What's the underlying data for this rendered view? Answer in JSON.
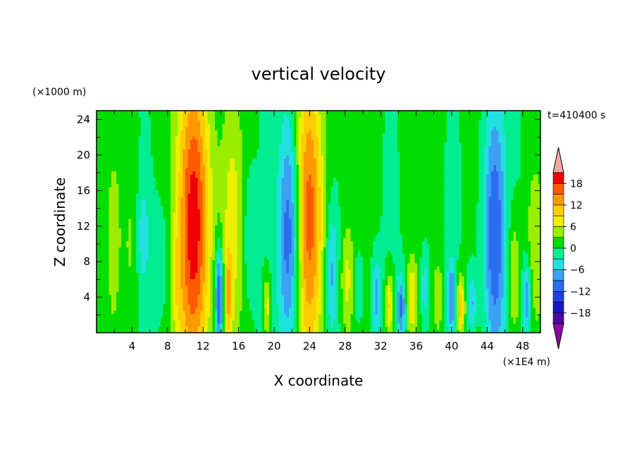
{
  "chart_data": {
    "type": "heatmap",
    "title": "vertical velocity",
    "xlabel": "X coordinate",
    "ylabel": "Z coordinate",
    "x_unit": "(×1E4 m)",
    "y_unit": "(×1000 m)",
    "time_label": "t=410400 s",
    "xlim": [
      0,
      50
    ],
    "ylim": [
      0,
      25
    ],
    "x_ticks": [
      4,
      8,
      12,
      16,
      20,
      24,
      28,
      32,
      36,
      40,
      44,
      48
    ],
    "y_ticks": [
      4,
      8,
      12,
      16,
      20,
      24
    ],
    "colorbar": {
      "levels": [
        -21,
        -18,
        -15,
        -12,
        -9,
        -6,
        -3,
        0,
        3,
        6,
        9,
        12,
        15,
        18,
        21
      ],
      "labels": [
        18,
        12,
        6,
        0,
        -6,
        -12,
        -18
      ],
      "colors": [
        "#8a0aa5",
        "#4a0aa5",
        "#1616c8",
        "#1d3ee0",
        "#2a6ef0",
        "#3ca0f5",
        "#22e0e0",
        "#00ee90",
        "#00dd00",
        "#99ee00",
        "#eeee00",
        "#ffcc00",
        "#ff9900",
        "#ff5a00",
        "#f00000",
        "#f8a8a8"
      ]
    },
    "features": [
      {
        "x": 2.0,
        "z": 12,
        "sx": 0.8,
        "sz": 9,
        "v": 2
      },
      {
        "x": 4.0,
        "z": 10,
        "sx": 0.6,
        "sz": 7,
        "v": 3
      },
      {
        "x": 5.2,
        "z": 11,
        "sx": 0.5,
        "sz": 4,
        "v": -5
      },
      {
        "x": 7.5,
        "z": 8,
        "sx": 0.8,
        "sz": 5,
        "v": -3
      },
      {
        "x": 9.0,
        "z": 6,
        "sx": 0.4,
        "sz": 4,
        "v": 3
      },
      {
        "x": 11.0,
        "z": 12,
        "sx": 1.3,
        "sz": 13,
        "v": 20
      },
      {
        "x": 13.8,
        "z": 4,
        "sx": 0.35,
        "sz": 4,
        "v": -15
      },
      {
        "x": 14.8,
        "z": 4,
        "sx": 0.35,
        "sz": 3.5,
        "v": 9
      },
      {
        "x": 15.3,
        "z": 13,
        "sx": 0.9,
        "sz": 9,
        "v": 6
      },
      {
        "x": 17.0,
        "z": 11,
        "sx": 0.6,
        "sz": 6,
        "v": -3
      },
      {
        "x": 19.2,
        "z": 3,
        "sx": 0.3,
        "sz": 2.5,
        "v": 8
      },
      {
        "x": 21.8,
        "z": 11,
        "sx": 0.9,
        "sz": 10,
        "v": -14
      },
      {
        "x": 23.9,
        "z": 13,
        "sx": 1.2,
        "sz": 12,
        "v": 16
      },
      {
        "x": 26.5,
        "z": 7,
        "sx": 0.5,
        "sz": 5,
        "v": -7
      },
      {
        "x": 28.2,
        "z": 6,
        "sx": 0.5,
        "sz": 4,
        "v": 6
      },
      {
        "x": 29.5,
        "z": 5,
        "sx": 0.4,
        "sz": 3,
        "v": -5
      },
      {
        "x": 31.5,
        "z": 4,
        "sx": 0.4,
        "sz": 3,
        "v": -8
      },
      {
        "x": 33.0,
        "z": 3,
        "sx": 0.35,
        "sz": 2.5,
        "v": 10
      },
      {
        "x": 34.3,
        "z": 3,
        "sx": 0.35,
        "sz": 2.5,
        "v": -10
      },
      {
        "x": 35.5,
        "z": 4,
        "sx": 0.4,
        "sz": 3,
        "v": 8
      },
      {
        "x": 37.0,
        "z": 5,
        "sx": 0.4,
        "sz": 3.5,
        "v": -6
      },
      {
        "x": 38.5,
        "z": 4,
        "sx": 0.4,
        "sz": 3,
        "v": 5
      },
      {
        "x": 40.0,
        "z": 4,
        "sx": 0.35,
        "sz": 3,
        "v": -9
      },
      {
        "x": 41.0,
        "z": 3,
        "sx": 0.35,
        "sz": 2.5,
        "v": 11
      },
      {
        "x": 42.3,
        "z": 3.5,
        "sx": 0.35,
        "sz": 2.5,
        "v": -7
      },
      {
        "x": 44.8,
        "z": 11,
        "sx": 0.9,
        "sz": 11,
        "v": -13
      },
      {
        "x": 47.0,
        "z": 6,
        "sx": 0.5,
        "sz": 5,
        "v": 7
      },
      {
        "x": 48.5,
        "z": 4,
        "sx": 0.35,
        "sz": 3,
        "v": -9
      },
      {
        "x": 49.3,
        "z": 10,
        "sx": 0.6,
        "sz": 6,
        "v": 5
      }
    ]
  }
}
